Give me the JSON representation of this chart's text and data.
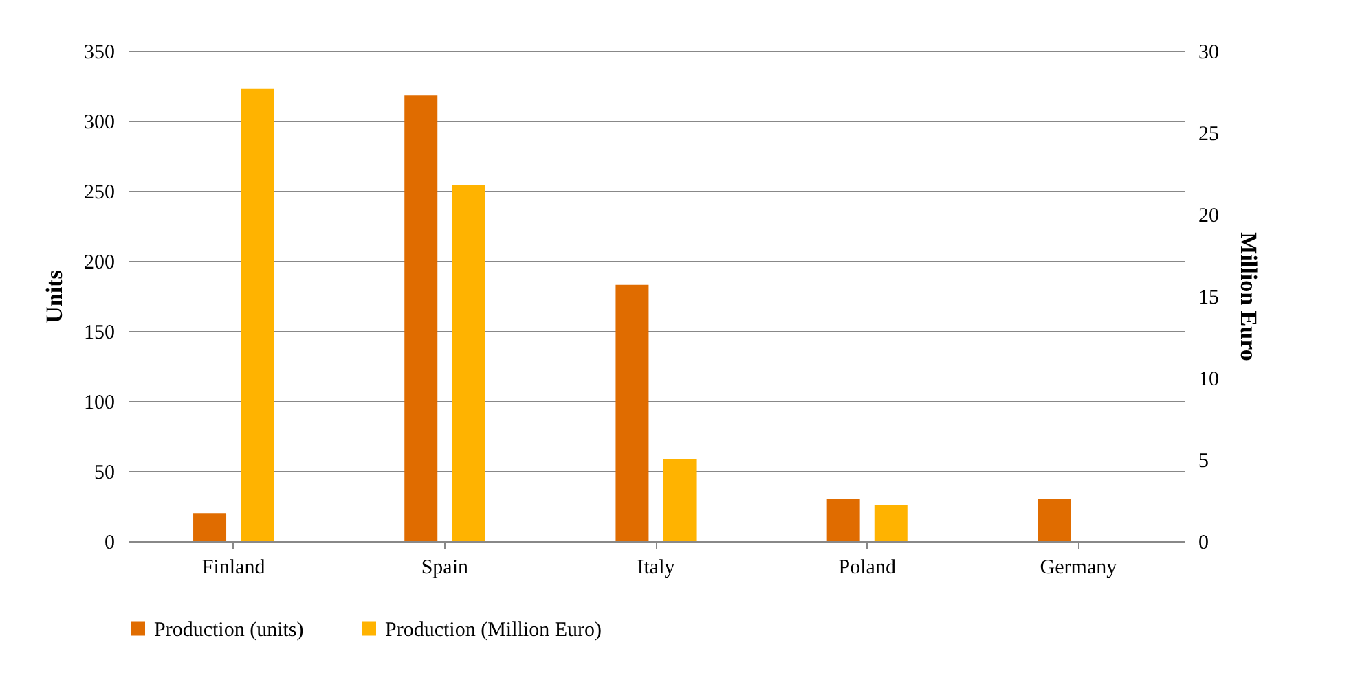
{
  "chart_data": {
    "type": "bar",
    "categories": [
      "Finland",
      "Spain",
      "Italy",
      "Poland",
      "Germany"
    ],
    "ylabel": "Units",
    "y2label": "Million Euro",
    "ylim": [
      0,
      350
    ],
    "yticks": [
      0,
      50,
      100,
      150,
      200,
      250,
      300,
      350
    ],
    "y2lim": [
      0,
      30
    ],
    "y2ticks": [
      0,
      5,
      10,
      15,
      20,
      25,
      30
    ],
    "series": [
      {
        "name": "Production (units)",
        "color": "#e06c00",
        "values": [
          20,
          318,
          183,
          30,
          30
        ]
      },
      {
        "name": "Production (Million Euro)",
        "color": "#ffb300",
        "axis": "y2",
        "values": [
          27.7,
          21.8,
          5.0,
          2.2,
          null
        ]
      }
    ],
    "grid": "y",
    "legend": "bottom"
  }
}
